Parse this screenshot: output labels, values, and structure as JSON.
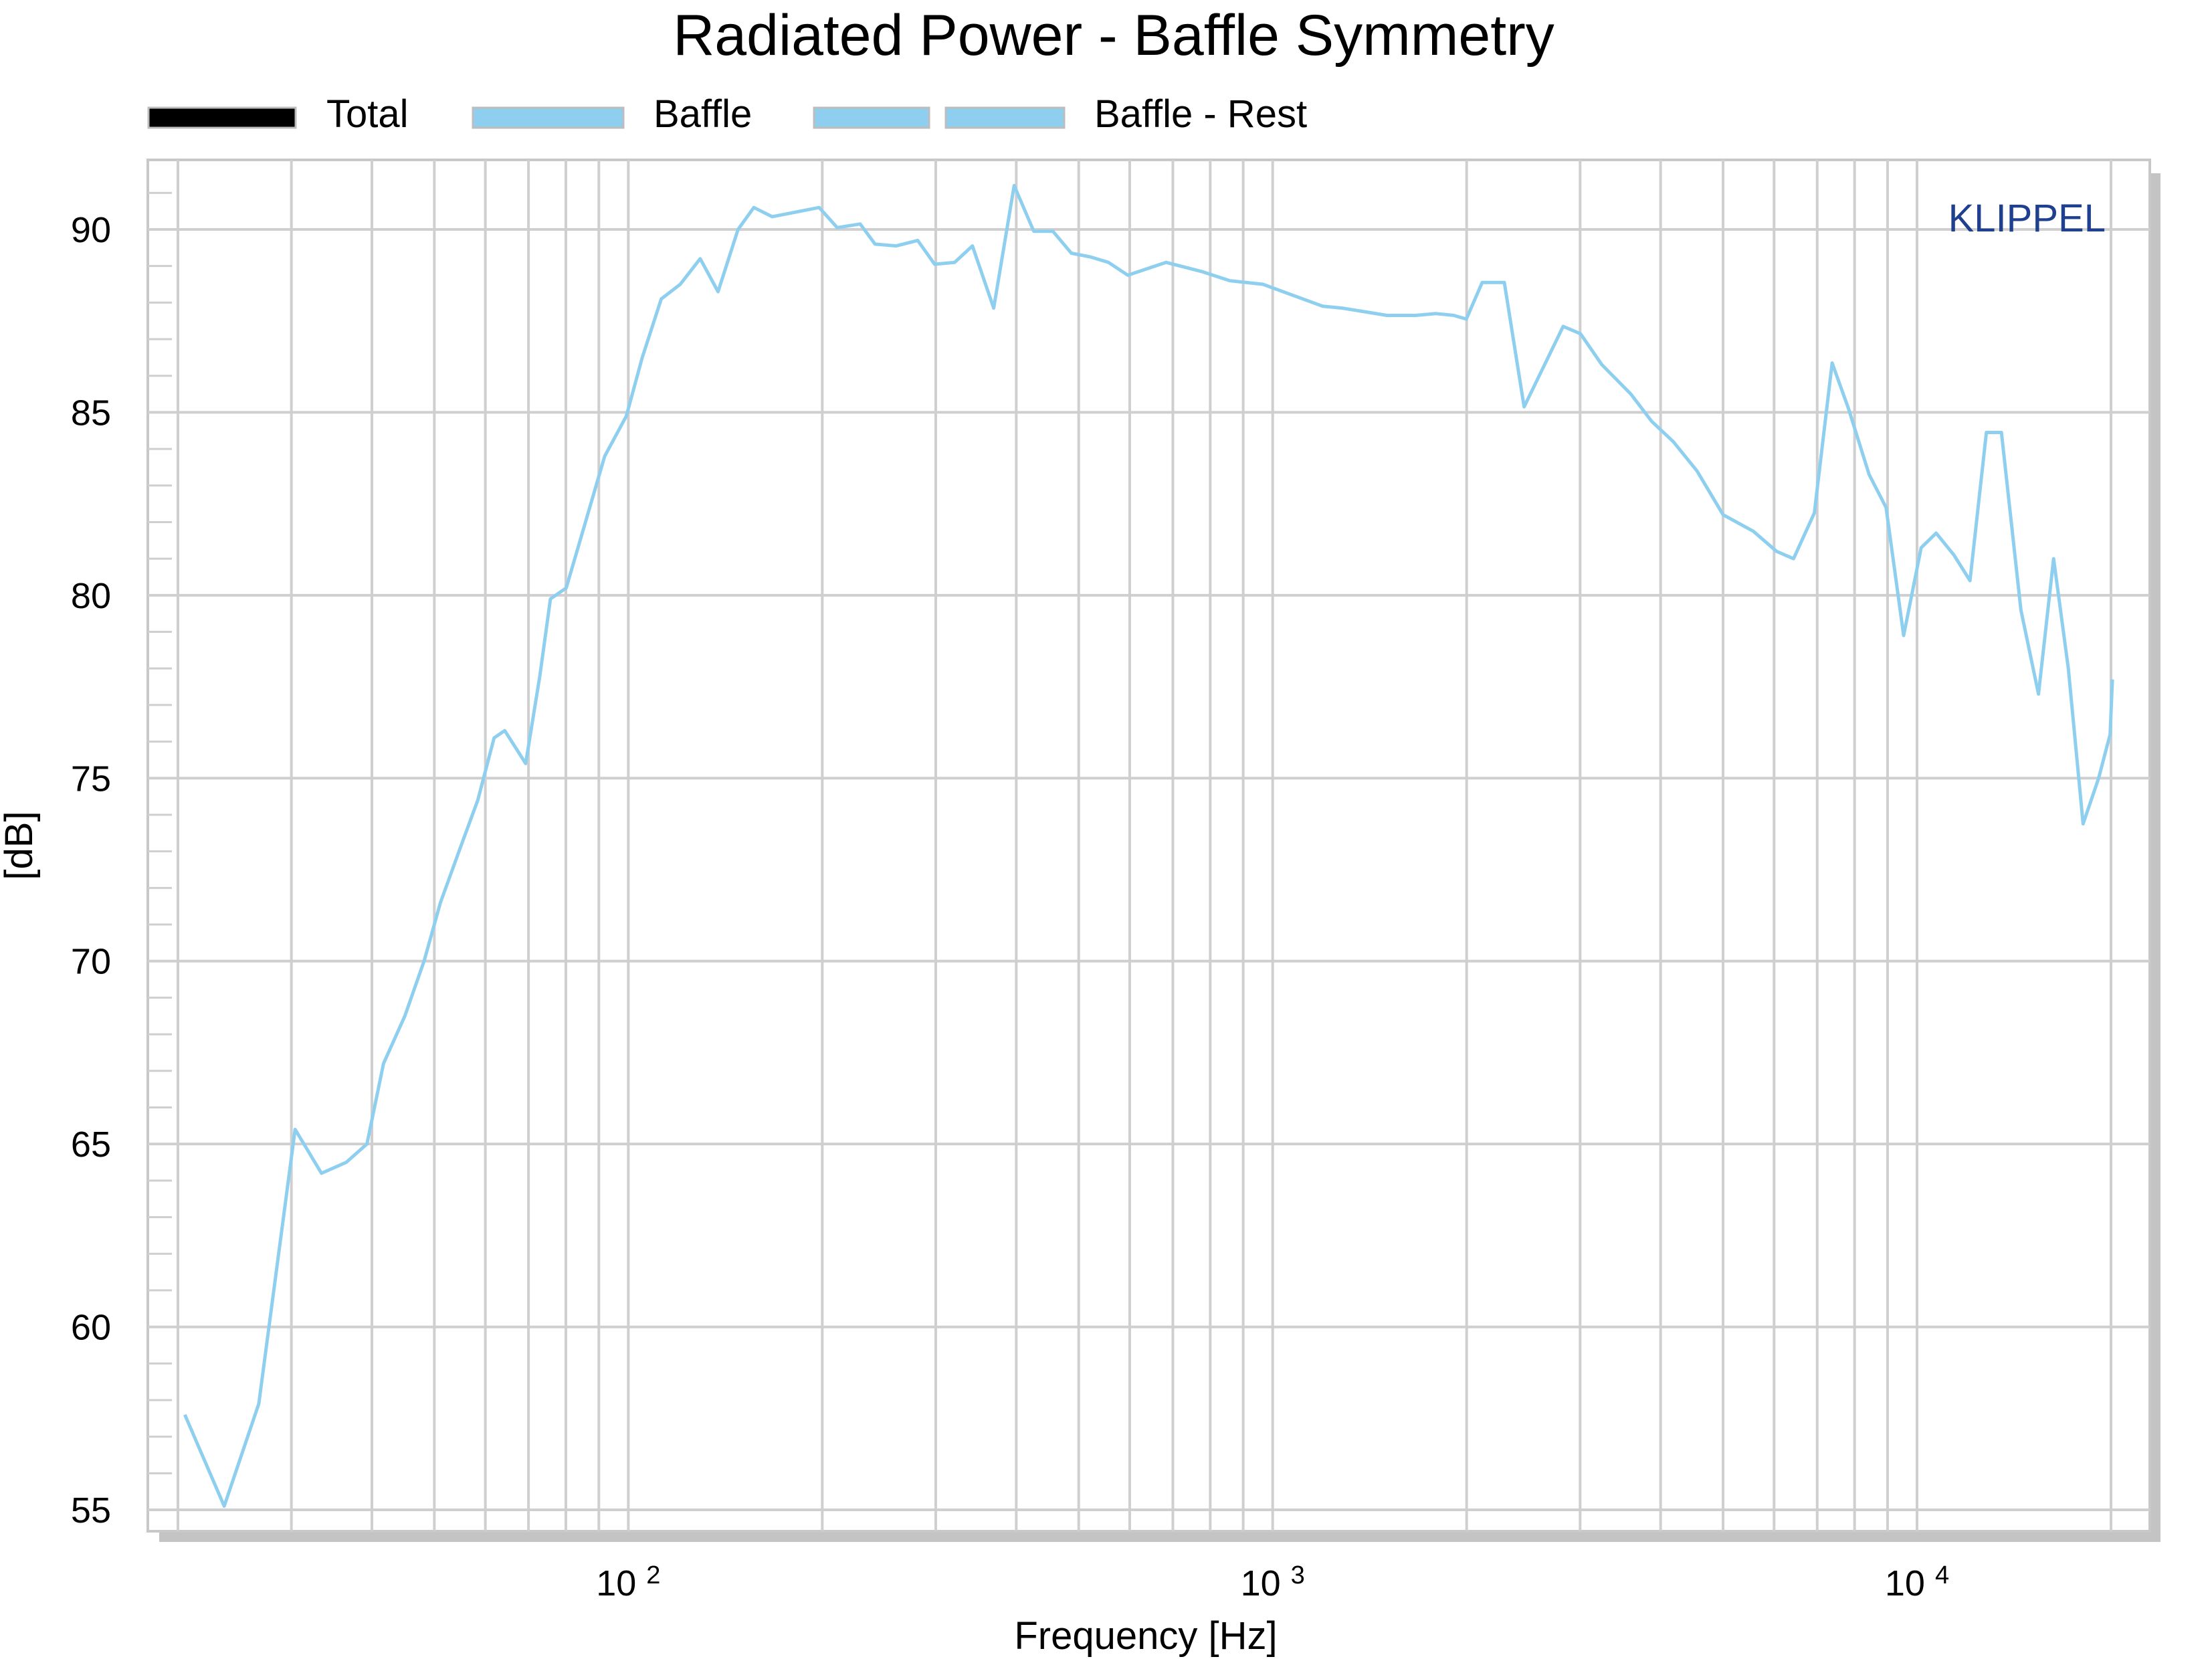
{
  "chart_data": {
    "type": "line",
    "title": "Radiated Power - Baffle Symmetry",
    "xlabel": "Frequency [Hz]",
    "ylabel": "[dB]",
    "x_scale": "log",
    "xlim": [
      20,
      20000
    ],
    "ylim": [
      54.5,
      92
    ],
    "grid": true,
    "legend_position": "top",
    "brand": "KLIPPEL",
    "brand_color": "#1f3f8f",
    "x_ticks": [
      {
        "value": 100,
        "base": "10",
        "exp": "2"
      },
      {
        "value": 1000,
        "base": "10",
        "exp": "3"
      },
      {
        "value": 10000,
        "base": "10",
        "exp": "4"
      }
    ],
    "y_ticks": [
      "55",
      "60",
      "65",
      "70",
      "75",
      "80",
      "85",
      "90"
    ],
    "legend": [
      {
        "name": "Total",
        "color": "#000000",
        "swatches": 1
      },
      {
        "name": "Baffle",
        "color": "#8ecff0",
        "swatches": 1
      },
      {
        "name": "Baffle - Rest",
        "color": "#8ecff0",
        "swatches": 2
      }
    ],
    "series": [
      {
        "name": "Baffle",
        "color": "#8ecff0",
        "points": [
          [
            20.5,
            57.6
          ],
          [
            23.6,
            55.1
          ],
          [
            26.7,
            57.9
          ],
          [
            30.4,
            65.4
          ],
          [
            33.4,
            64.2
          ],
          [
            36.5,
            64.5
          ],
          [
            39.3,
            65.0
          ],
          [
            41.7,
            67.2
          ],
          [
            45.0,
            68.5
          ],
          [
            48.2,
            70.0
          ],
          [
            51.1,
            71.6
          ],
          [
            54.6,
            73.0
          ],
          [
            58.4,
            74.4
          ],
          [
            61.9,
            76.1
          ],
          [
            64.3,
            76.3
          ],
          [
            69.3,
            75.4
          ],
          [
            72.9,
            77.8
          ],
          [
            75.7,
            79.9
          ],
          [
            80.1,
            80.2
          ],
          [
            85.8,
            82.0
          ],
          [
            91.9,
            83.8
          ],
          [
            99.3,
            84.9
          ],
          [
            105.1,
            86.5
          ],
          [
            112.5,
            88.1
          ],
          [
            120.4,
            88.5
          ],
          [
            129.3,
            89.2
          ],
          [
            137.8,
            88.3
          ],
          [
            148.0,
            90.0
          ],
          [
            156.6,
            90.6
          ],
          [
            167.2,
            90.35
          ],
          [
            197.8,
            90.6
          ],
          [
            211.0,
            90.05
          ],
          [
            229.0,
            90.15
          ],
          [
            241.5,
            89.6
          ],
          [
            260.5,
            89.55
          ],
          [
            281.3,
            89.7
          ],
          [
            298.8,
            89.05
          ],
          [
            321.0,
            89.1
          ],
          [
            342.0,
            89.55
          ],
          [
            369.0,
            87.85
          ],
          [
            397.0,
            91.2
          ],
          [
            425.8,
            89.95
          ],
          [
            456.0,
            89.95
          ],
          [
            487.0,
            89.35
          ],
          [
            521.0,
            89.25
          ],
          [
            556.0,
            89.1
          ],
          [
            596.0,
            88.75
          ],
          [
            683.0,
            89.1
          ],
          [
            776.0,
            88.85
          ],
          [
            858.0,
            88.6
          ],
          [
            966.0,
            88.5
          ],
          [
            1196.0,
            87.9
          ],
          [
            1283.0,
            87.85
          ],
          [
            1505.0,
            87.65
          ],
          [
            1666.0,
            87.65
          ],
          [
            1792.0,
            87.7
          ],
          [
            1911.0,
            87.65
          ],
          [
            1998.0,
            87.55
          ],
          [
            2114.0,
            88.55
          ],
          [
            2288.0,
            88.55
          ],
          [
            2456.0,
            85.15
          ],
          [
            2824.0,
            87.35
          ],
          [
            3004.0,
            87.15
          ],
          [
            3243.0,
            86.3
          ],
          [
            3597.0,
            85.5
          ],
          [
            3876.0,
            84.75
          ],
          [
            4185.0,
            84.2
          ],
          [
            4555.0,
            83.4
          ],
          [
            5001.0,
            82.2
          ],
          [
            5572.0,
            81.75
          ],
          [
            6054.0,
            81.2
          ],
          [
            6433.0,
            81.0
          ],
          [
            6928.0,
            82.25
          ],
          [
            7384.0,
            86.35
          ],
          [
            7828.0,
            85.1
          ],
          [
            8426.0,
            83.3
          ],
          [
            8952.0,
            82.4
          ],
          [
            9532.0,
            78.9
          ],
          [
            10150.0,
            81.3
          ],
          [
            10708.0,
            81.7
          ],
          [
            11410.0,
            81.1
          ],
          [
            12084.0,
            80.4
          ],
          [
            12814.0,
            84.45
          ],
          [
            13522.0,
            84.45
          ],
          [
            14493.0,
            79.6
          ],
          [
            15436.0,
            77.3
          ],
          [
            16290.0,
            81.0
          ],
          [
            17170.0,
            78.0
          ],
          [
            18102.0,
            73.75
          ],
          [
            19134.0,
            75.0
          ],
          [
            19937.0,
            76.2
          ],
          [
            20100.0,
            77.7
          ]
        ]
      }
    ]
  }
}
